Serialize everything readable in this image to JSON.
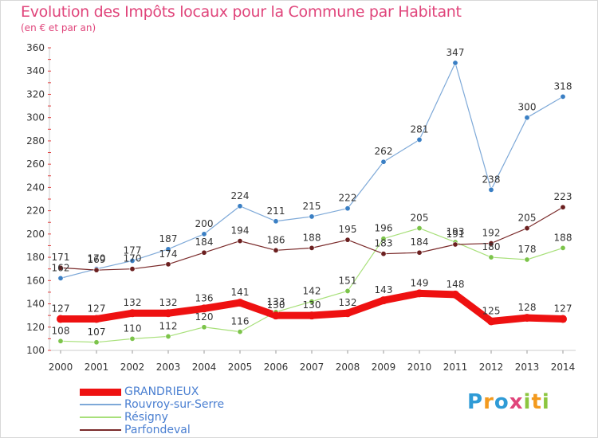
{
  "title": "Evolution des Impôts locaux pour la Commune par Habitant",
  "subtitle": "(en € et par an)",
  "logo": {
    "text": "Proxiti",
    "letters": [
      {
        "ch": "P",
        "color": "#2f9bd6"
      },
      {
        "ch": "r",
        "color": "#f39a1e"
      },
      {
        "ch": "o",
        "color": "#2f9bd6"
      },
      {
        "ch": "x",
        "color": "#e0457b"
      },
      {
        "ch": "i",
        "color": "#8cc63f"
      },
      {
        "ch": "t",
        "color": "#f39a1e"
      },
      {
        "ch": "i",
        "color": "#8cc63f"
      }
    ]
  },
  "chart_data": {
    "type": "line",
    "x": [
      "2000",
      "2001",
      "2002",
      "2003",
      "2004",
      "2005",
      "2006",
      "2007",
      "2008",
      "2009",
      "2010",
      "2011",
      "2012",
      "2013",
      "2014"
    ],
    "ylim": [
      100,
      360
    ],
    "yticks": [
      100,
      120,
      140,
      160,
      180,
      200,
      220,
      240,
      260,
      280,
      300,
      320,
      340,
      360
    ],
    "grid": false,
    "legend_position": "bottom-left",
    "series": [
      {
        "name": "GRANDRIEUX",
        "color": "#ee1111",
        "marker": "#ee1111",
        "values": [
          127,
          127,
          132,
          132,
          136,
          141,
          130,
          130,
          132,
          143,
          149,
          148,
          125,
          128,
          127
        ]
      },
      {
        "name": "Rouvroy-sur-Serre",
        "color": "#7ea9d8",
        "marker": "#3a7fc4",
        "values": [
          162,
          170,
          177,
          187,
          200,
          224,
          211,
          215,
          222,
          262,
          281,
          347,
          238,
          300,
          318
        ]
      },
      {
        "name": "Résigny",
        "color": "#a8e07a",
        "marker": "#7cc44a",
        "values": [
          108,
          107,
          110,
          112,
          120,
          116,
          133,
          142,
          151,
          196,
          205,
          193,
          180,
          178,
          188
        ]
      },
      {
        "name": "Parfondeval",
        "color": "#7a2a2a",
        "marker": "#6b1f1f",
        "values": [
          171,
          169,
          170,
          174,
          184,
          194,
          186,
          188,
          195,
          183,
          184,
          191,
          192,
          205,
          223
        ]
      }
    ]
  }
}
